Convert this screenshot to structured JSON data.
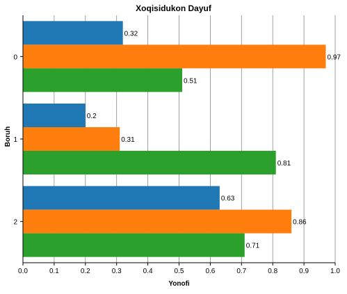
{
  "chart_data": {
    "type": "bar",
    "orientation": "horizontal",
    "title": "Xoqisidukon Dayuf",
    "xlabel": "Yonofi",
    "ylabel": "Boruh",
    "categories": [
      "0",
      "1",
      "2"
    ],
    "xlim": [
      0,
      1
    ],
    "xticks": [
      "0.0",
      "0.1",
      "0.2",
      "0.3",
      "0.4",
      "0.5",
      "0.6",
      "0.7",
      "0.8",
      "0.9",
      "1.0"
    ],
    "grid": "vertical",
    "legend": "none",
    "series": [
      {
        "color": "#1f77b4",
        "values": [
          0.32,
          0.2,
          0.63
        ],
        "labels": [
          "0.32",
          "0.2",
          "0.63"
        ]
      },
      {
        "color": "#ff7f0e",
        "values": [
          0.97,
          0.31,
          0.86
        ],
        "labels": [
          "0.97",
          "0.31",
          "0.86"
        ]
      },
      {
        "color": "#2ca02c",
        "values": [
          0.51,
          0.81,
          0.71
        ],
        "labels": [
          "0.51",
          "0.81",
          "0.71"
        ]
      }
    ]
  }
}
